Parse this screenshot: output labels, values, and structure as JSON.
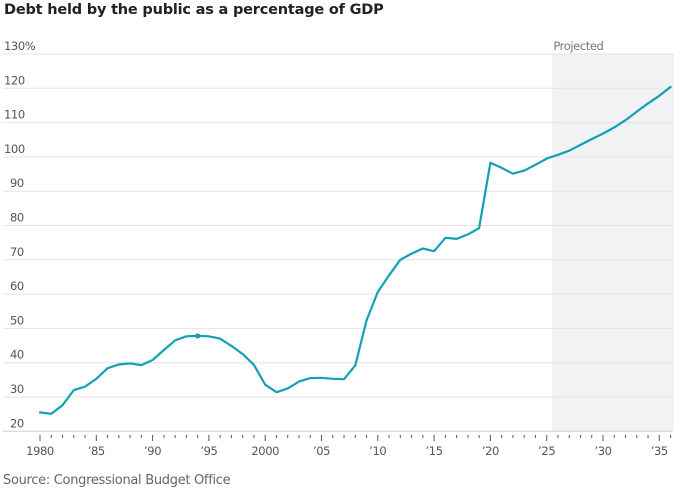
{
  "chart_data": {
    "type": "line",
    "title": "Debt held by the public as a percentage of GDP",
    "source": "Source: Congressional Budget Office",
    "xlabel": "",
    "ylabel": "",
    "ylim": [
      20,
      130
    ],
    "xlim": [
      1980,
      2036
    ],
    "grid": true,
    "y_ticks": [
      20,
      30,
      40,
      50,
      60,
      70,
      80,
      90,
      100,
      110,
      120,
      130
    ],
    "y_tick_labels": [
      "20",
      "30",
      "40",
      "50",
      "60",
      "70",
      "80",
      "90",
      "100",
      "110",
      "120",
      "130%"
    ],
    "x_ticks": [
      1980,
      1985,
      1990,
      1995,
      2000,
      2005,
      2010,
      2015,
      2020,
      2025,
      2030,
      2035
    ],
    "x_tick_labels": [
      "1980",
      "’85",
      "’90",
      "’95",
      "2000",
      "’05",
      "’10",
      "’15",
      "’20",
      "’25",
      "’30",
      "’35"
    ],
    "projected_region": {
      "label": "Projected",
      "start": 2025.5,
      "end": 2036
    },
    "highlight_point": {
      "x": 1994,
      "y": 47.8
    },
    "line_color": "#13a0b6",
    "projected_fill": "#f1f2f4",
    "series": [
      {
        "name": "Debt held by the public (% of GDP)",
        "x": [
          1980,
          1981,
          1982,
          1983,
          1984,
          1985,
          1986,
          1987,
          1988,
          1989,
          1990,
          1991,
          1992,
          1993,
          1994,
          1995,
          1996,
          1997,
          1998,
          1999,
          2000,
          2001,
          2002,
          2003,
          2004,
          2005,
          2006,
          2007,
          2008,
          2009,
          2010,
          2011,
          2012,
          2013,
          2014,
          2015,
          2016,
          2017,
          2018,
          2019,
          2020,
          2021,
          2022,
          2023,
          2024,
          2025,
          2026,
          2027,
          2028,
          2029,
          2030,
          2031,
          2032,
          2033,
          2034,
          2035,
          2036
        ],
        "values": [
          25.5,
          25.1,
          27.6,
          32.0,
          33.0,
          35.3,
          38.4,
          39.5,
          39.8,
          39.3,
          40.8,
          43.7,
          46.5,
          47.7,
          47.8,
          47.7,
          47.0,
          44.9,
          42.5,
          39.4,
          33.6,
          31.4,
          32.5,
          34.5,
          35.5,
          35.6,
          35.3,
          35.2,
          39.2,
          52.3,
          60.6,
          65.5,
          70.0,
          71.8,
          73.3,
          72.5,
          76.4,
          76.1,
          77.4,
          79.2,
          98.3,
          96.8,
          95.1,
          96.0,
          97.7,
          99.5,
          100.6,
          101.8,
          103.5,
          105.2,
          106.8,
          108.6,
          110.7,
          113.2,
          115.6,
          117.8,
          120.4
        ]
      }
    ]
  }
}
